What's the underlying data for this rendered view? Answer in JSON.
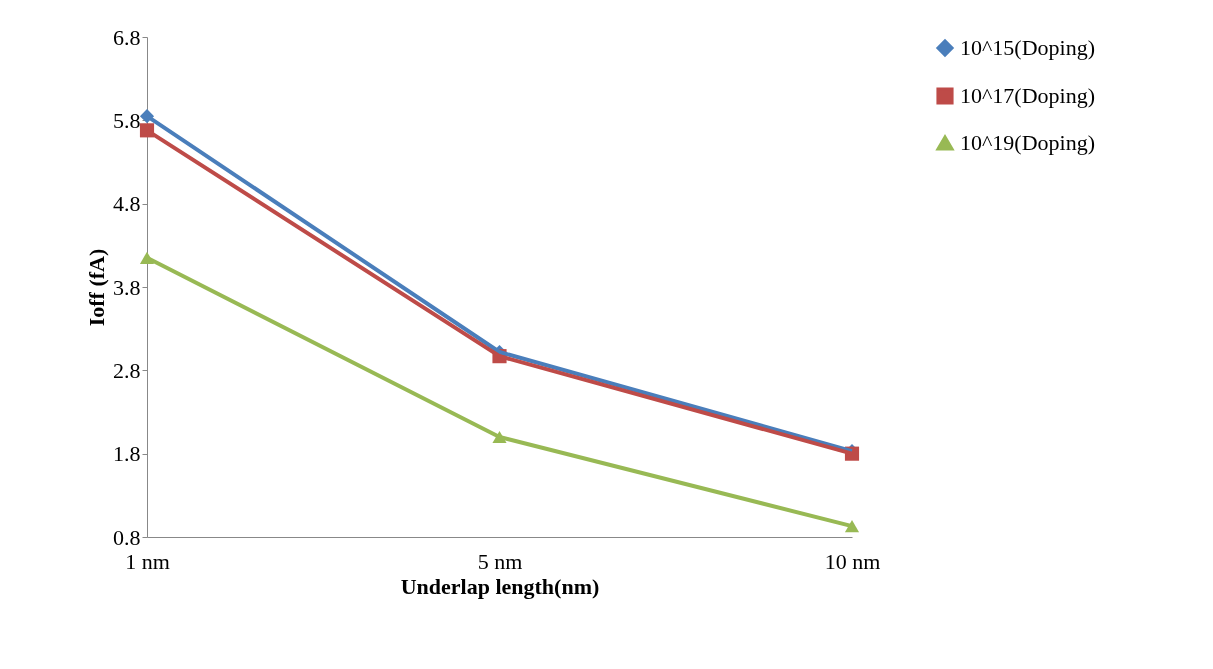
{
  "chart_data": {
    "type": "line",
    "xlabel": "Underlap length(nm)",
    "ylabel": "Ioff (fA)",
    "categories": [
      "1 nm",
      "5 nm",
      "10 nm"
    ],
    "ylim": [
      0.8,
      6.8
    ],
    "yticks": [
      0.8,
      1.8,
      2.8,
      3.8,
      4.8,
      5.8,
      6.8
    ],
    "grid": false,
    "legend": "right",
    "line_style": "solid",
    "series": [
      {
        "name": "10^15(Doping)",
        "color": "#4a7ebb",
        "marker": "diamond",
        "values": [
          5.85,
          3.02,
          1.83
        ]
      },
      {
        "name": "10^17(Doping)",
        "color": "#be4b48",
        "marker": "square",
        "values": [
          5.68,
          2.97,
          1.8
        ]
      },
      {
        "name": "10^19(Doping)",
        "color": "#98b954",
        "marker": "triangle",
        "values": [
          4.15,
          2.0,
          0.93
        ]
      }
    ]
  }
}
